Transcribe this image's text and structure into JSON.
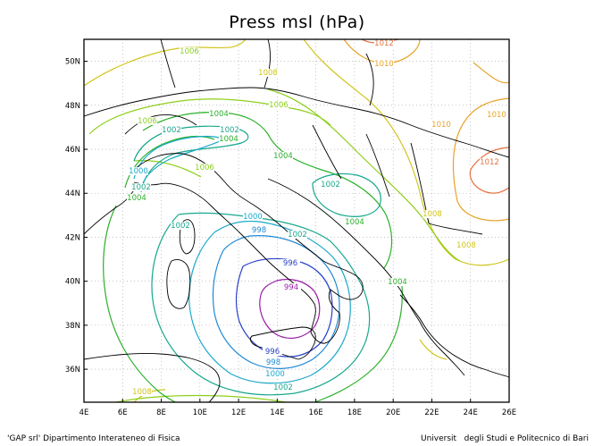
{
  "figure": {
    "title": "Press msl (hPa)",
    "footer_left": "'GAP srl' Dipartimento Interateneo di Fisica",
    "footer_right": "Universit   degli Studi e Politecnico di Bari"
  },
  "map": {
    "lon_range": [
      4,
      26
    ],
    "lat_range": [
      34.5,
      51
    ],
    "lon_ticks": [
      "4E",
      "6E",
      "8E",
      "10E",
      "12E",
      "14E",
      "16E",
      "18E",
      "20E",
      "22E",
      "24E",
      "26E"
    ],
    "lat_ticks": [
      "36N",
      "38N",
      "40N",
      "42N",
      "44N",
      "46N",
      "48N",
      "50N"
    ],
    "grid": "dotted",
    "field": "mean sea level pressure",
    "low_center": {
      "lon": 14.5,
      "lat": 39.3,
      "value": 994
    }
  },
  "isobars": [
    {
      "value": 994,
      "color": "#9b1fa6",
      "labels": [
        "994"
      ]
    },
    {
      "value": 996,
      "color": "#2a42c8",
      "labels": [
        "996",
        "996"
      ]
    },
    {
      "value": 998,
      "color": "#1f8ad6",
      "labels": [
        "998",
        "998"
      ]
    },
    {
      "value": 1000,
      "color": "#1aa9c9",
      "labels": [
        "1000",
        "1000",
        "1000"
      ]
    },
    {
      "value": 1002,
      "color": "#17a78c",
      "labels": [
        "1002",
        "1002",
        "1002",
        "1002",
        "1002",
        "1002",
        "1002"
      ]
    },
    {
      "value": 1004,
      "color": "#2ab02a",
      "labels": [
        "1004",
        "1004",
        "1004",
        "1004",
        "1004",
        "1004"
      ]
    },
    {
      "value": 1006,
      "color": "#8ecf1c",
      "labels": [
        "1006",
        "1006",
        "1006",
        "1006"
      ]
    },
    {
      "value": 1008,
      "color": "#d0c51b",
      "labels": [
        "1008",
        "1008",
        "1008",
        "1008"
      ]
    },
    {
      "value": 1010,
      "color": "#e6a328",
      "labels": [
        "1010",
        "1010",
        "1010"
      ]
    },
    {
      "value": 1012,
      "color": "#e5713f",
      "labels": [
        "1012",
        "1012"
      ]
    }
  ],
  "colors": {
    "coastline": "#000000",
    "grid": "#a0a0a0",
    "frame": "#000000"
  }
}
